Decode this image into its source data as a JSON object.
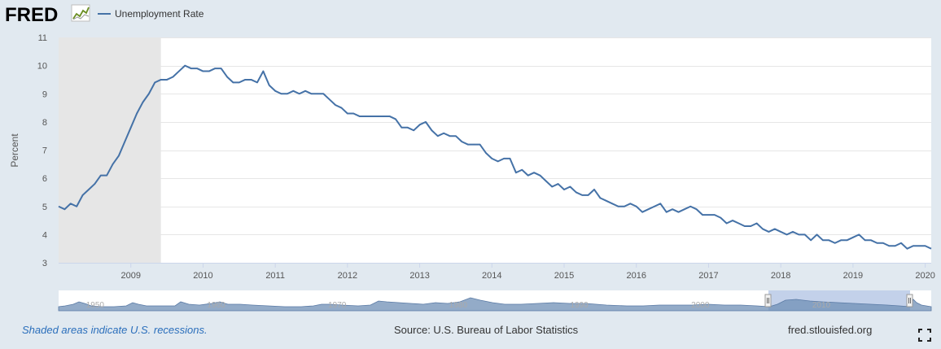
{
  "header": {
    "logo_text": "FRED",
    "logo_icon": "chart-line-icon",
    "legend_label": "Unemployment Rate"
  },
  "colors": {
    "background": "#e1e9f0",
    "plot_bg": "#ffffff",
    "series_line": "#4572a7",
    "recession_shade": "#e6e6e6",
    "navigator_fill": "#6f8fb5",
    "navigator_selection": "#b9c9e6",
    "note_link": "#2a6ebb"
  },
  "footer": {
    "recession_note": "Shaded areas indicate U.S. recessions.",
    "source": "Source: U.S. Bureau of Labor Statistics",
    "site": "fred.stlouisfed.org",
    "fullscreen_icon": "expand-icon"
  },
  "navigator": {
    "labels": [
      "1950",
      "1960",
      "1970",
      "1980",
      "1990",
      "2000",
      "2010"
    ]
  },
  "chart_data": {
    "type": "line",
    "title": "",
    "xlabel": "",
    "ylabel": "Percent",
    "ylim": [
      3,
      11
    ],
    "yticks": [
      3,
      4,
      5,
      6,
      7,
      8,
      9,
      10,
      11
    ],
    "xlim": [
      "2008-01",
      "2020-02"
    ],
    "xticks": [
      "2009",
      "2010",
      "2011",
      "2012",
      "2013",
      "2014",
      "2015",
      "2016",
      "2017",
      "2018",
      "2019",
      "2020"
    ],
    "grid": true,
    "legend": "top-left",
    "recession_shading": [
      [
        "2008-01",
        "2009-06"
      ]
    ],
    "series": [
      {
        "name": "Unemployment Rate",
        "start": "2008-01",
        "frequency": "monthly",
        "values": [
          5.0,
          4.9,
          5.1,
          5.0,
          5.4,
          5.6,
          5.8,
          6.1,
          6.1,
          6.5,
          6.8,
          7.3,
          7.8,
          8.3,
          8.7,
          9.0,
          9.4,
          9.5,
          9.5,
          9.6,
          9.8,
          10.0,
          9.9,
          9.9,
          9.8,
          9.8,
          9.9,
          9.9,
          9.6,
          9.4,
          9.4,
          9.5,
          9.5,
          9.4,
          9.8,
          9.3,
          9.1,
          9.0,
          9.0,
          9.1,
          9.0,
          9.1,
          9.0,
          9.0,
          9.0,
          8.8,
          8.6,
          8.5,
          8.3,
          8.3,
          8.2,
          8.2,
          8.2,
          8.2,
          8.2,
          8.2,
          8.1,
          7.8,
          7.8,
          7.7,
          7.9,
          8.0,
          7.7,
          7.5,
          7.6,
          7.5,
          7.5,
          7.3,
          7.2,
          7.2,
          7.2,
          6.9,
          6.7,
          6.6,
          6.7,
          6.7,
          6.2,
          6.3,
          6.1,
          6.2,
          6.1,
          5.9,
          5.7,
          5.8,
          5.6,
          5.7,
          5.5,
          5.4,
          5.4,
          5.6,
          5.3,
          5.2,
          5.1,
          5.0,
          5.0,
          5.1,
          5.0,
          4.8,
          4.9,
          5.0,
          5.1,
          4.8,
          4.9,
          4.8,
          4.9,
          5.0,
          4.9,
          4.7,
          4.7,
          4.7,
          4.6,
          4.4,
          4.5,
          4.4,
          4.3,
          4.3,
          4.4,
          4.2,
          4.1,
          4.2,
          4.1,
          4.0,
          4.1,
          4.0,
          4.0,
          3.8,
          4.0,
          3.8,
          3.8,
          3.7,
          3.8,
          3.8,
          3.9,
          4.0,
          3.8,
          3.8,
          3.7,
          3.7,
          3.6,
          3.6,
          3.7,
          3.5,
          3.6,
          3.6,
          3.6,
          3.5
        ]
      }
    ]
  }
}
